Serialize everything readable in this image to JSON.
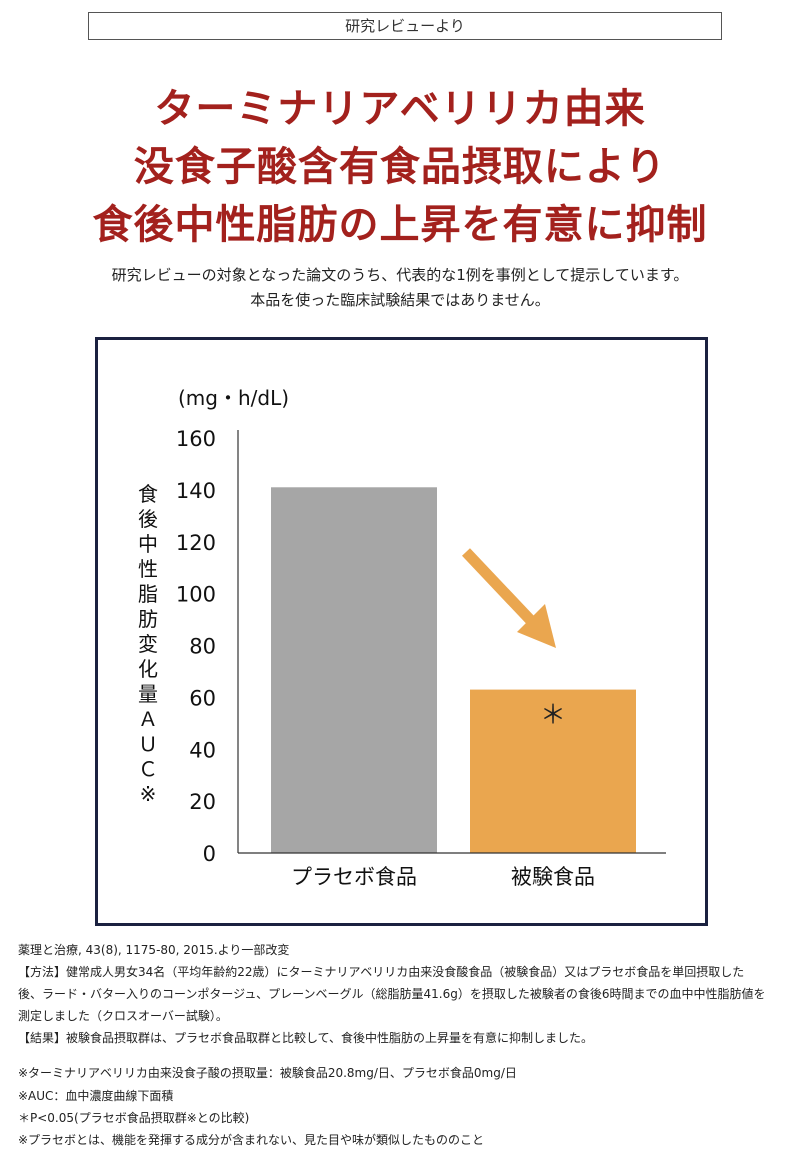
{
  "header": {
    "tag": "研究レビューより"
  },
  "headline": {
    "line1": "ターミナリアベリリカ由来",
    "line2": "没食子酸含有食品摂取により",
    "line3": "食後中性脂肪の上昇を有意に抑制"
  },
  "intro": {
    "line1": "研究レビューの対象となった論文のうち、代表的な1例を事例として提示しています。",
    "line2": "本品を使った臨床試験結果ではありません。"
  },
  "chart_data": {
    "type": "bar",
    "categories": [
      "プラセボ食品",
      "被験食品"
    ],
    "values": [
      141,
      63
    ],
    "unit": "(mg・h/dL)",
    "ylabel": "食後中性脂肪変化量ＡＵＣ※",
    "ylim": [
      0,
      160
    ],
    "yticks": [
      0,
      20,
      40,
      60,
      80,
      100,
      120,
      140,
      160
    ],
    "bar_colors": [
      "#a6a6a6",
      "#eaa64f"
    ],
    "arrow_color": "#eaa64f",
    "annotation": "＊",
    "grid": false
  },
  "footnotes": {
    "source": "薬理と治療, 43(8), 1175-80, 2015.より一部改変",
    "method_1": "【方法】健常成人男女34名（平均年齢約22歳）にターミナリアベリリカ由来没食酸食品（被験食品）又はプラセボ食品を単回摂取した",
    "method_2": "後、ラード・バター入りのコーンポタージュ、プレーンベーグル（総脂肪量41.6g）を摂取した被験者の食後6時間までの血中中性脂肪値を",
    "method_3": "測定しました（クロスオーバー試験）。",
    "result": "【結果】被験食品摂取群は、プラセボ食品取群と比較して、食後中性脂肪の上昇量を有意に抑制しました。",
    "note_1": "※ターミナリアベリリカ由来没食子酸の摂取量：被験食品20.8mg/日、プラセボ食品0mg/日",
    "note_2": "※AUC：血中濃度曲線下面積",
    "note_3": "＊P<0.05(プラセボ食品摂取群※との比較)",
    "note_4": "※プラセボとは、機能を発揮する成分が含まれない、見た目や味が類似したもののこと"
  }
}
